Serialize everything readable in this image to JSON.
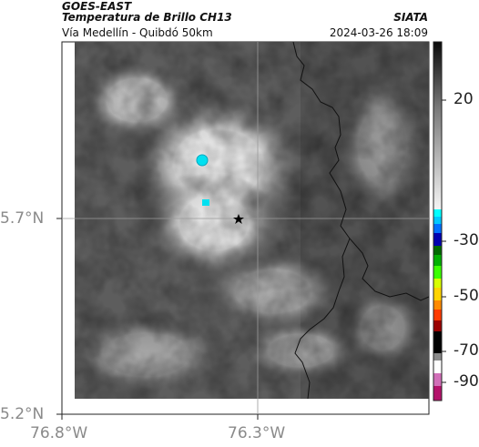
{
  "header": {
    "satellite": "GOES-EAST",
    "product": "Temperatura de Brillo CH13",
    "region": "Vía Medellín - Quibdó 50km",
    "brand": "SIATA",
    "timestamp": "2024-03-26 18:09"
  },
  "axes": {
    "x_ticks": [
      "76.8°W",
      "76.3°W"
    ],
    "y_ticks": [
      "5.7°N",
      "5.2°N"
    ]
  },
  "colorbar": {
    "labels": [
      "20",
      "-30",
      "-50",
      "-70",
      "-90"
    ],
    "colors": [
      "#b4126b",
      "#d16fb8",
      "#ffffff",
      "#000000",
      "#9a0000",
      "#ff3a00",
      "#ffd400",
      "#d7ff00",
      "#3bff00",
      "#00b000",
      "#0000b0",
      "#00ffff"
    ]
  },
  "markers": {
    "reference_point": "star",
    "cold_cell_color": "#00e0f0"
  }
}
